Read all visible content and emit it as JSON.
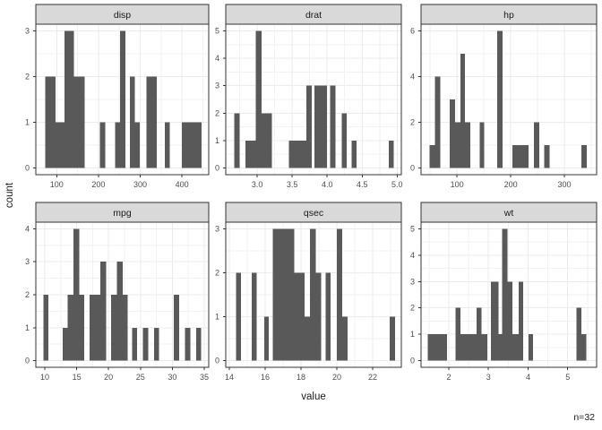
{
  "figure": {
    "y_axis_title": "count",
    "x_axis_title": "value",
    "annotation": "n=32",
    "colors": {
      "bar": "#595959",
      "strip_bg": "#D9D9D9",
      "strip_border": "#333333",
      "panel_border": "#333333",
      "panel_bg": "#FFFFFF",
      "grid_major": "#EBEBEB",
      "grid_minor": "#F2F2F2",
      "tick_mark": "#333333",
      "tick_label": "#4D4D4D",
      "strip_text": "#1A1A1A"
    }
  },
  "chart_data": [
    {
      "type": "bar",
      "facet": "disp",
      "xlim": [
        50,
        464
      ],
      "x_ticks": [
        100,
        200,
        300,
        400
      ],
      "x_tick_labels": [
        "100",
        "200",
        "300",
        "400"
      ],
      "ylim": [
        0,
        3
      ],
      "y_ticks": [
        0,
        1,
        2,
        3
      ],
      "y_tick_labels": [
        "0",
        "1",
        "2",
        "3"
      ],
      "bars": [
        [
          72,
          97,
          2
        ],
        [
          97,
          119,
          1
        ],
        [
          119,
          141,
          3
        ],
        [
          141,
          167,
          2
        ],
        [
          203,
          216,
          1
        ],
        [
          240,
          252,
          1
        ],
        [
          252,
          264,
          3
        ],
        [
          275,
          287,
          2
        ],
        [
          287,
          299,
          1
        ],
        [
          315,
          340,
          2
        ],
        [
          359,
          371,
          1
        ],
        [
          400,
          447,
          1
        ]
      ]
    },
    {
      "type": "bar",
      "facet": "drat",
      "xlim": [
        2.55,
        5.06
      ],
      "x_ticks": [
        3.0,
        3.5,
        4.0,
        4.5,
        5.0
      ],
      "x_tick_labels": [
        "3.0",
        "3.5",
        "4.0",
        "4.5",
        "5.0"
      ],
      "ylim": [
        0,
        5
      ],
      "y_ticks": [
        0,
        1,
        2,
        3,
        4,
        5
      ],
      "y_tick_labels": [
        "0",
        "1",
        "2",
        "3",
        "4",
        "5"
      ],
      "bars": [
        [
          2.67,
          2.75,
          2
        ],
        [
          2.83,
          2.98,
          1
        ],
        [
          2.98,
          3.06,
          5
        ],
        [
          3.06,
          3.21,
          2
        ],
        [
          3.45,
          3.7,
          1
        ],
        [
          3.7,
          3.78,
          3
        ],
        [
          3.82,
          4.0,
          3
        ],
        [
          4.04,
          4.12,
          3
        ],
        [
          4.21,
          4.28,
          2
        ],
        [
          4.35,
          4.42,
          1
        ],
        [
          4.88,
          4.95,
          1
        ]
      ]
    },
    {
      "type": "bar",
      "facet": "hp",
      "xlim": [
        33,
        360
      ],
      "x_ticks": [
        100,
        200,
        300
      ],
      "x_tick_labels": [
        "100",
        "200",
        "300"
      ],
      "ylim": [
        0,
        6
      ],
      "y_ticks": [
        0,
        2,
        4,
        6
      ],
      "y_tick_labels": [
        "0",
        "2",
        "4",
        "6"
      ],
      "bars": [
        [
          49,
          59,
          1
        ],
        [
          59,
          69,
          4
        ],
        [
          86,
          96,
          3
        ],
        [
          96,
          106,
          2
        ],
        [
          106,
          115,
          5
        ],
        [
          115,
          125,
          2
        ],
        [
          142,
          151,
          2
        ],
        [
          175,
          185,
          6
        ],
        [
          203,
          233,
          1
        ],
        [
          243,
          253,
          2
        ],
        [
          262,
          272,
          1
        ],
        [
          332,
          342,
          1
        ]
      ]
    },
    {
      "type": "bar",
      "facet": "mpg",
      "xlim": [
        8.6,
        35.7
      ],
      "x_ticks": [
        10,
        15,
        20,
        25,
        30,
        35
      ],
      "x_tick_labels": [
        "10",
        "15",
        "20",
        "25",
        "30",
        "35"
      ],
      "ylim": [
        0,
        4
      ],
      "y_ticks": [
        0,
        1,
        2,
        3,
        4
      ],
      "y_tick_labels": [
        "0",
        "1",
        "2",
        "3",
        "4"
      ],
      "bars": [
        [
          9.8,
          10.6,
          2
        ],
        [
          12.8,
          13.6,
          1
        ],
        [
          13.6,
          14.5,
          2
        ],
        [
          14.5,
          15.4,
          4
        ],
        [
          15.4,
          16.2,
          2
        ],
        [
          17.0,
          18.7,
          2
        ],
        [
          18.7,
          19.6,
          3
        ],
        [
          20.4,
          21.3,
          2
        ],
        [
          21.3,
          22.2,
          3
        ],
        [
          22.2,
          23.0,
          2
        ],
        [
          23.7,
          24.5,
          1
        ],
        [
          25.4,
          26.2,
          1
        ],
        [
          27.1,
          27.9,
          1
        ],
        [
          30.2,
          31.1,
          2
        ],
        [
          32.0,
          32.8,
          1
        ],
        [
          33.7,
          34.5,
          1
        ]
      ]
    },
    {
      "type": "bar",
      "facet": "qsec",
      "xlim": [
        13.8,
        23.6
      ],
      "x_ticks": [
        14,
        16,
        18,
        20,
        22
      ],
      "x_tick_labels": [
        "14",
        "16",
        "18",
        "20",
        "22"
      ],
      "ylim": [
        0,
        3
      ],
      "y_ticks": [
        0,
        1,
        2,
        3
      ],
      "y_tick_labels": [
        "0",
        "1",
        "2",
        "3"
      ],
      "bars": [
        [
          14.37,
          14.64,
          2
        ],
        [
          15.24,
          15.52,
          2
        ],
        [
          15.95,
          16.2,
          1
        ],
        [
          16.42,
          17.62,
          3
        ],
        [
          17.62,
          18.2,
          2
        ],
        [
          18.2,
          18.5,
          1
        ],
        [
          18.5,
          18.82,
          3
        ],
        [
          18.82,
          19.12,
          2
        ],
        [
          19.37,
          19.65,
          2
        ],
        [
          20.0,
          20.29,
          3
        ],
        [
          20.29,
          20.59,
          1
        ],
        [
          22.95,
          23.25,
          1
        ]
      ]
    },
    {
      "type": "bar",
      "facet": "wt",
      "xlim": [
        1.3,
        5.73
      ],
      "x_ticks": [
        2,
        3,
        4,
        5
      ],
      "x_tick_labels": [
        "2",
        "3",
        "4",
        "5"
      ],
      "ylim": [
        0,
        5
      ],
      "y_ticks": [
        0,
        1,
        2,
        3,
        4,
        5
      ],
      "y_tick_labels": [
        "0",
        "1",
        "2",
        "3",
        "4",
        "5"
      ],
      "bars": [
        [
          1.47,
          1.96,
          1
        ],
        [
          2.17,
          2.3,
          2
        ],
        [
          2.3,
          2.7,
          1
        ],
        [
          2.7,
          2.83,
          2
        ],
        [
          2.83,
          2.97,
          1
        ],
        [
          3.06,
          3.25,
          3
        ],
        [
          3.25,
          3.34,
          1
        ],
        [
          3.34,
          3.48,
          5
        ],
        [
          3.48,
          3.61,
          3
        ],
        [
          3.61,
          3.76,
          1
        ],
        [
          3.76,
          3.88,
          3
        ],
        [
          4.01,
          4.12,
          1
        ],
        [
          5.22,
          5.35,
          2
        ],
        [
          5.35,
          5.47,
          1
        ]
      ]
    }
  ]
}
